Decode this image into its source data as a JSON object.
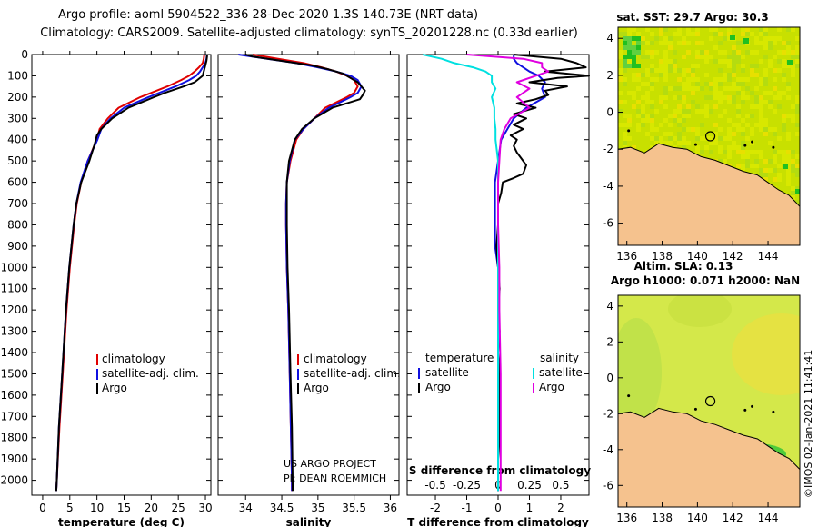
{
  "header": {
    "line1": "Argo profile: aoml 5904522_336 28-Dec-2020 1.3S 140.73E (NRT data)",
    "line2": "Climatology: CARS2009. Satellite-adjusted climatology: synTS_20201228.nc (0.33d earlier)"
  },
  "colors": {
    "climatology": "#e00000",
    "satellite": "#1010e0",
    "argo": "#000000",
    "sat_salinity": "#00e0e0",
    "argo_salinity": "#e000e0",
    "land": "#f5c28e"
  },
  "credits": {
    "line1": "US ARGO PROJECT",
    "line2": "PI: DEAN ROEMMICH"
  },
  "side_stamp": "©IMOS 02-Jan-2021 11:41:41",
  "chart_data": [
    {
      "type": "line",
      "name": "temperature",
      "xlabel": "temperature (deg C)",
      "xlim": [
        -2,
        31
      ],
      "xticks": [
        0,
        5,
        10,
        15,
        20,
        25,
        30
      ],
      "xticklabels": [
        "0",
        "5",
        "10",
        "15",
        "20",
        "25",
        "30"
      ],
      "ylim": [
        0,
        2070
      ],
      "yticks": [
        0,
        100,
        200,
        300,
        400,
        500,
        600,
        700,
        800,
        900,
        1000,
        1100,
        1200,
        1300,
        1400,
        1500,
        1600,
        1700,
        1800,
        1900,
        2000
      ],
      "yticklabels": [
        "0",
        "100",
        "200",
        "300",
        "400",
        "500",
        "600",
        "700",
        "800",
        "900",
        "1000",
        "1100",
        "1200",
        "1300",
        "1400",
        "1500",
        "1600",
        "1700",
        "1800",
        "1900",
        "2000"
      ],
      "legend": [
        "climatology",
        "satellite-adj. clim.",
        "Argo"
      ],
      "series": [
        {
          "name": "climatology",
          "color": "#e00000",
          "depth": [
            0,
            20,
            40,
            60,
            80,
            100,
            120,
            150,
            200,
            250,
            300,
            350,
            400,
            500,
            600,
            700,
            800,
            1000,
            1200,
            1500,
            1750,
            2000,
            2050
          ],
          "values": [
            29.8,
            29.7,
            29.5,
            28.8,
            28.0,
            27.0,
            25.5,
            23.0,
            18.0,
            14.0,
            12.0,
            10.5,
            10.0,
            8.3,
            7.1,
            6.3,
            5.8,
            5.0,
            4.4,
            3.7,
            3.1,
            2.6,
            2.5
          ]
        },
        {
          "name": "satellite-adj. clim.",
          "color": "#1010e0",
          "depth": [
            0,
            20,
            40,
            60,
            80,
            100,
            120,
            150,
            200,
            250,
            300,
            350,
            400,
            500,
            600,
            700,
            800,
            1000,
            1200,
            1500,
            1750,
            2000,
            2050
          ],
          "values": [
            30.3,
            30.2,
            30.0,
            29.5,
            29.0,
            28.3,
            27.0,
            24.5,
            19.5,
            15.0,
            12.5,
            10.8,
            10.1,
            8.3,
            7.0,
            6.2,
            5.7,
            4.9,
            4.3,
            3.6,
            3.0,
            2.6,
            2.5
          ]
        },
        {
          "name": "Argo",
          "color": "#000000",
          "depth": [
            0,
            10,
            30,
            50,
            80,
            100,
            130,
            150,
            180,
            200,
            250,
            300,
            350,
            380,
            420,
            500,
            600,
            700,
            800,
            1000,
            1200,
            1500,
            1750,
            2000,
            2050
          ],
          "values": [
            30.3,
            30.3,
            30.2,
            30.0,
            29.7,
            29.5,
            28.0,
            26.0,
            22.5,
            20.5,
            15.8,
            12.8,
            10.8,
            10.0,
            9.6,
            8.6,
            7.1,
            6.2,
            5.7,
            4.9,
            4.3,
            3.6,
            3.0,
            2.6,
            2.5
          ]
        }
      ]
    },
    {
      "type": "line",
      "name": "salinity",
      "xlabel": "salinity",
      "xlim": [
        33.62,
        36.12
      ],
      "xticks": [
        34,
        34.5,
        35,
        35.5,
        36
      ],
      "xticklabels": [
        "34",
        "34.5",
        "35",
        "35.5",
        "36"
      ],
      "ylim": [
        0,
        2070
      ],
      "legend": [
        "climatology",
        "satellite-adj. clim.",
        "Argo"
      ],
      "series": [
        {
          "name": "climatology",
          "color": "#e00000",
          "depth": [
            0,
            20,
            40,
            60,
            80,
            100,
            120,
            150,
            180,
            200,
            250,
            300,
            350,
            400,
            500,
            600,
            700,
            800,
            1000,
            1200,
            1500,
            2000,
            2050
          ],
          "values": [
            34.1,
            34.45,
            34.8,
            35.05,
            35.25,
            35.4,
            35.5,
            35.55,
            35.5,
            35.4,
            35.1,
            34.95,
            34.8,
            34.7,
            34.62,
            34.57,
            34.56,
            34.56,
            34.57,
            34.59,
            34.61,
            34.64,
            34.64
          ]
        },
        {
          "name": "satellite-adj. clim.",
          "color": "#1010e0",
          "depth": [
            0,
            20,
            40,
            60,
            80,
            100,
            120,
            150,
            180,
            200,
            250,
            300,
            350,
            400,
            500,
            600,
            700,
            800,
            1000,
            1200,
            1500,
            2000,
            2050
          ],
          "values": [
            33.9,
            34.3,
            34.7,
            35.0,
            35.25,
            35.45,
            35.55,
            35.6,
            35.55,
            35.45,
            35.15,
            34.95,
            34.8,
            34.68,
            34.61,
            34.57,
            34.56,
            34.56,
            34.57,
            34.59,
            34.61,
            34.64,
            34.64
          ]
        },
        {
          "name": "Argo",
          "color": "#000000",
          "depth": [
            0,
            10,
            30,
            50,
            70,
            90,
            110,
            130,
            150,
            170,
            190,
            210,
            250,
            300,
            350,
            400,
            500,
            600,
            700,
            800,
            1000,
            1200,
            1500,
            1750,
            2000,
            2050
          ],
          "values": [
            34.0,
            34.1,
            34.5,
            34.9,
            35.15,
            35.35,
            35.45,
            35.55,
            35.6,
            35.65,
            35.62,
            35.58,
            35.2,
            34.95,
            34.78,
            34.68,
            34.6,
            34.57,
            34.57,
            34.57,
            34.58,
            34.6,
            34.62,
            34.64,
            34.65,
            34.65
          ]
        }
      ]
    },
    {
      "type": "line",
      "name": "difference from climatology",
      "xlabel": "T difference from climatology",
      "xlim": [
        -2.9,
        2.9
      ],
      "xticks": [
        -2,
        -1,
        0,
        1,
        2
      ],
      "xticklabels": [
        "-2",
        "-1",
        "0",
        "1",
        "2"
      ],
      "top_xlabel": "S difference from climatology",
      "top_xticks": [
        -0.5,
        -0.25,
        0,
        0.25,
        0.5
      ],
      "top_xticklabels": [
        "-0.5",
        "-0.25",
        "0",
        "0.25",
        "0.5"
      ],
      "ylim": [
        0,
        2070
      ],
      "legend_left_title": "temperature",
      "legend_right_title": "salinity",
      "legend_left": [
        "satellite",
        "Argo"
      ],
      "legend_right": [
        "satellite",
        "Argo"
      ],
      "series": [
        {
          "name": "T satellite",
          "color": "#1010e0",
          "depth": [
            0,
            20,
            40,
            60,
            80,
            100,
            130,
            160,
            200,
            250,
            300,
            350,
            400,
            500,
            600,
            700,
            800,
            900,
            1000,
            1200,
            1500,
            1700,
            2000,
            2050
          ],
          "values": [
            0.5,
            0.5,
            0.6,
            0.8,
            1.0,
            1.3,
            1.5,
            1.4,
            1.5,
            0.9,
            0.5,
            0.3,
            0.1,
            0.0,
            -0.1,
            -0.1,
            -0.1,
            -0.1,
            0.0,
            0.0,
            0.0,
            0.0,
            0.0,
            0.0
          ]
        },
        {
          "name": "T Argo",
          "color": "#000000",
          "depth": [
            0,
            20,
            40,
            60,
            80,
            100,
            110,
            130,
            150,
            170,
            190,
            210,
            230,
            250,
            280,
            300,
            330,
            350,
            380,
            400,
            430,
            460,
            500,
            520,
            560,
            580,
            600,
            650,
            700,
            750,
            800,
            900,
            1000,
            1100,
            1200,
            1300,
            1400,
            1500,
            1600,
            1700,
            1800,
            1900,
            2000,
            2050
          ],
          "values": [
            0.5,
            2.0,
            2.5,
            2.8,
            1.5,
            2.9,
            1.9,
            1.0,
            2.2,
            1.5,
            1.6,
            1.2,
            0.6,
            1.2,
            0.5,
            0.9,
            0.5,
            0.8,
            0.4,
            0.6,
            0.5,
            0.6,
            0.8,
            0.9,
            0.8,
            0.5,
            0.15,
            0.1,
            0.0,
            0.0,
            0.0,
            -0.05,
            0.0,
            0.05,
            0.0,
            0.05,
            0.0,
            0.05,
            0.05,
            0.05,
            0.05,
            0.0,
            0.0,
            0.0
          ]
        },
        {
          "name": "S satellite",
          "color": "#00e0e0",
          "depth": [
            0,
            20,
            40,
            60,
            80,
            100,
            130,
            160,
            200,
            250,
            300,
            350,
            400,
            500,
            600,
            800,
            1000,
            1200,
            1500,
            2000,
            2050
          ],
          "values": [
            -0.6,
            -0.45,
            -0.35,
            -0.2,
            -0.1,
            -0.05,
            -0.05,
            -0.02,
            -0.05,
            -0.03,
            -0.03,
            -0.02,
            -0.02,
            0.0,
            0.0,
            0.0,
            0.0,
            0.0,
            0.0,
            0.0,
            0.0
          ]
        },
        {
          "name": "S Argo",
          "color": "#e000e0",
          "depth": [
            0,
            20,
            40,
            60,
            80,
            100,
            130,
            160,
            200,
            250,
            300,
            350,
            400,
            500,
            600,
            800,
            1000,
            1200,
            1500,
            2000,
            2050
          ],
          "values": [
            -0.25,
            0.2,
            0.35,
            0.35,
            0.4,
            0.3,
            0.15,
            0.25,
            0.15,
            0.25,
            0.1,
            0.05,
            0.02,
            0.01,
            0.0,
            0.0,
            0.01,
            0.01,
            0.02,
            0.02,
            0.02
          ]
        }
      ]
    }
  ],
  "maps": [
    {
      "name": "sst-map",
      "title": "sat. SST: 29.7 Argo: 30.3",
      "xlim": [
        135.5,
        145.8
      ],
      "ylim": [
        -7.2,
        4.6
      ],
      "xticks": [
        136,
        138,
        140,
        142,
        144
      ],
      "xticklabels": [
        "136",
        "138",
        "140",
        "142",
        "144"
      ],
      "yticks": [
        4,
        2,
        0,
        -2,
        -4,
        -6
      ],
      "yticklabels": [
        "4",
        "2",
        "0",
        "-2",
        "-4",
        "-6"
      ],
      "float_lon": 140.73,
      "float_lat": -1.3
    },
    {
      "name": "sla-map",
      "title_line1": "Altim. SLA: 0.13",
      "title_line2": "Argo h1000: 0.071 h2000: NaN",
      "xlim": [
        135.5,
        145.8
      ],
      "ylim": [
        -7.2,
        4.6
      ],
      "xticks": [
        136,
        138,
        140,
        142,
        144
      ],
      "xticklabels": [
        "136",
        "138",
        "140",
        "142",
        "144"
      ],
      "yticks": [
        4,
        2,
        0,
        -2,
        -4,
        -6
      ],
      "yticklabels": [
        "4",
        "2",
        "0",
        "-2",
        "-4",
        "-6"
      ],
      "float_lon": 140.73,
      "float_lat": -1.3
    }
  ]
}
